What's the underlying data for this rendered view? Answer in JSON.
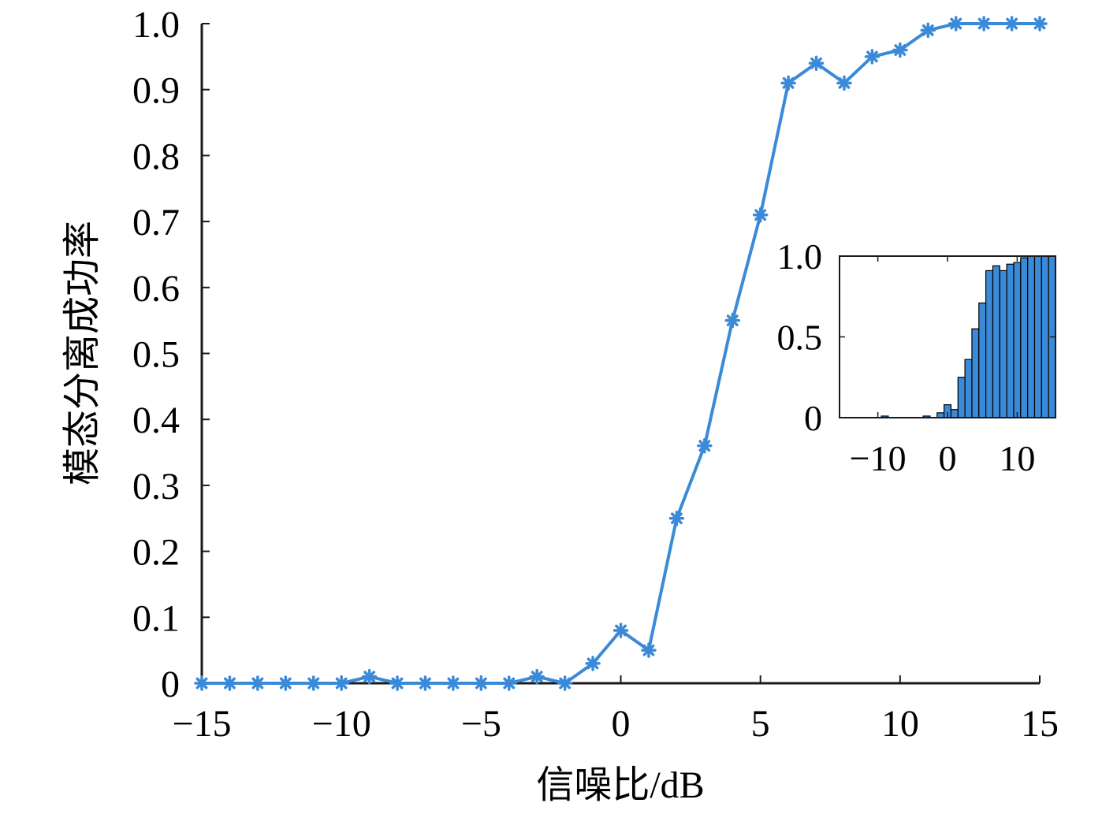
{
  "chart_data": [
    {
      "type": "line",
      "xlabel": "信噪比/dB",
      "ylabel": "模态分离成功率",
      "xlim": [
        -15,
        15
      ],
      "ylim": [
        0,
        1.0
      ],
      "xticks": [
        -15,
        -10,
        -5,
        0,
        5,
        10,
        15
      ],
      "xtick_labels": [
        "−15",
        "−10",
        "−5",
        "0",
        "5",
        "10",
        "15"
      ],
      "yticks": [
        0,
        0.1,
        0.2,
        0.3,
        0.4,
        0.5,
        0.6,
        0.7,
        0.8,
        0.9,
        1.0
      ],
      "ytick_labels": [
        "0",
        "0.1",
        "0.2",
        "0.3",
        "0.4",
        "0.5",
        "0.6",
        "0.7",
        "0.8",
        "0.9",
        "1.0"
      ],
      "grid": false,
      "marker": "asterisk",
      "color": "#3a8ad8",
      "series": [
        {
          "x": [
            -15,
            -14,
            -13,
            -12,
            -11,
            -10,
            -9,
            -8,
            -7,
            -6,
            -5,
            -4,
            -3,
            -2,
            -1,
            0,
            1,
            2,
            3,
            4,
            5,
            6,
            7,
            8,
            9,
            10,
            11,
            12,
            13,
            14,
            15
          ],
          "values": [
            0,
            0,
            0,
            0,
            0,
            0,
            0.01,
            0,
            0,
            0,
            0,
            0,
            0.01,
            0,
            0.03,
            0.08,
            0.05,
            0.25,
            0.36,
            0.55,
            0.71,
            0.91,
            0.94,
            0.91,
            0.95,
            0.96,
            0.99,
            1.0,
            1.0,
            1.0,
            1.0
          ]
        }
      ]
    },
    {
      "type": "bar",
      "xlim": [
        -15.5,
        15.5
      ],
      "ylim": [
        0,
        1.0
      ],
      "xticks": [
        -10,
        0,
        10
      ],
      "xtick_labels": [
        "−10",
        "0",
        "10"
      ],
      "yticks": [
        0,
        0.5,
        1.0
      ],
      "ytick_labels": [
        "0",
        "0.5",
        "1.0"
      ],
      "grid": false,
      "color": "#3a8ad8",
      "edge_color": "#000000",
      "x": [
        -15,
        -14,
        -13,
        -12,
        -11,
        -10,
        -9,
        -8,
        -7,
        -6,
        -5,
        -4,
        -3,
        -2,
        -1,
        0,
        1,
        2,
        3,
        4,
        5,
        6,
        7,
        8,
        9,
        10,
        11,
        12,
        13,
        14,
        15
      ],
      "values": [
        0,
        0,
        0,
        0,
        0,
        0,
        0.01,
        0,
        0,
        0,
        0,
        0,
        0.01,
        0,
        0.03,
        0.08,
        0.05,
        0.25,
        0.36,
        0.55,
        0.71,
        0.91,
        0.94,
        0.91,
        0.95,
        0.96,
        0.99,
        1.0,
        1.0,
        1.0,
        1.0
      ]
    }
  ]
}
